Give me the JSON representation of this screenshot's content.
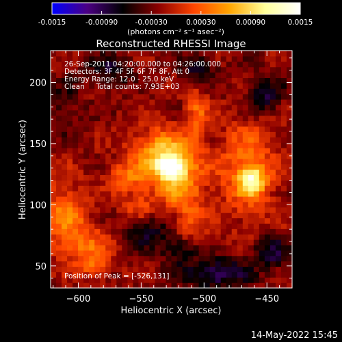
{
  "chart_data": {
    "type": "heatmap",
    "title": "Reconstructed RHESSI Image",
    "xlabel": "Heliocentric X (arcsec)",
    "ylabel": "Heliocentric Y (arcsec)",
    "xlim": [
      -622,
      -430
    ],
    "ylim": [
      32,
      226
    ],
    "x_ticks": [
      -600,
      -550,
      -500,
      -450
    ],
    "y_ticks": [
      50,
      100,
      150,
      200
    ],
    "colorbar": {
      "range": [
        -0.0015,
        0.0015
      ],
      "tick_values": [
        -0.0015,
        -0.0009,
        -0.0003,
        0.0003,
        0.0009,
        0.0015
      ],
      "tick_labels": [
        "-0.0015",
        "-0.00090",
        "-0.00030",
        "0.00030",
        "0.00090",
        "0.0015"
      ],
      "unit_label": "(photons cm⁻² s⁻¹ asec⁻²)",
      "stops": [
        "#0000ff",
        "#4b0082",
        "#000000",
        "#8b0000",
        "#ff4500",
        "#ffa500",
        "#ffff99",
        "#ffffff"
      ]
    },
    "info_lines": [
      "26-Sep-2011 04:20:00.000 to 04:26:00.000",
      "Detectors: 3F 4F 5F 6F 7F 8F, Att 0",
      "Energy Range: 12.0 - 25.0 keV",
      "Clean     Total counts: 7.93E+03"
    ],
    "peak_label": "Position of Peak = [-526,131]",
    "sources": [
      {
        "x": -526,
        "y": 131,
        "sx": 7,
        "sy": 6,
        "amp": 0.0015
      },
      {
        "x": -533,
        "y": 141,
        "sx": 17,
        "sy": 15,
        "amp": 0.001
      },
      {
        "x": -520,
        "y": 116,
        "sx": 14,
        "sy": 14,
        "amp": 0.0006
      },
      {
        "x": -506,
        "y": 178,
        "sx": 6,
        "sy": 20,
        "amp": 0.0005
      },
      {
        "x": -462,
        "y": 121,
        "sx": 7,
        "sy": 8,
        "amp": 0.001
      },
      {
        "x": -466,
        "y": 128,
        "sx": 17,
        "sy": 28,
        "amp": 0.0006
      },
      {
        "x": -612,
        "y": 92,
        "sx": 13,
        "sy": 20,
        "amp": 0.0006
      },
      {
        "x": -593,
        "y": 66,
        "sx": 13,
        "sy": 12,
        "amp": 0.0005
      },
      {
        "x": -585,
        "y": 48,
        "sx": 7,
        "sy": 7,
        "amp": 0.0005
      },
      {
        "x": -563,
        "y": 122,
        "sx": 10,
        "sy": 8,
        "amp": 0.0005
      },
      {
        "x": -512,
        "y": 86,
        "sx": 9,
        "sy": 14,
        "amp": 0.0004
      },
      {
        "x": -552,
        "y": 100,
        "sx": 9,
        "sy": 9,
        "amp": 0.0004
      },
      {
        "x": -575,
        "y": 210,
        "sx": 12,
        "sy": 9,
        "amp": -0.0005
      },
      {
        "x": -505,
        "y": 210,
        "sx": 9,
        "sy": 9,
        "amp": -0.0006
      },
      {
        "x": -452,
        "y": 190,
        "sx": 10,
        "sy": 10,
        "amp": -0.0006
      },
      {
        "x": -447,
        "y": 62,
        "sx": 10,
        "sy": 9,
        "amp": -0.0006
      },
      {
        "x": -490,
        "y": 44,
        "sx": 18,
        "sy": 9,
        "amp": -0.0007
      },
      {
        "x": -545,
        "y": 78,
        "sx": 12,
        "sy": 10,
        "amp": -0.0005
      },
      {
        "x": -520,
        "y": 64,
        "sx": 10,
        "sy": 8,
        "amp": -0.0005
      },
      {
        "x": -612,
        "y": 180,
        "sx": 10,
        "sy": 15,
        "amp": -0.0003
      }
    ]
  },
  "footer": {
    "timestamp": "14-May-2022 15:45"
  }
}
